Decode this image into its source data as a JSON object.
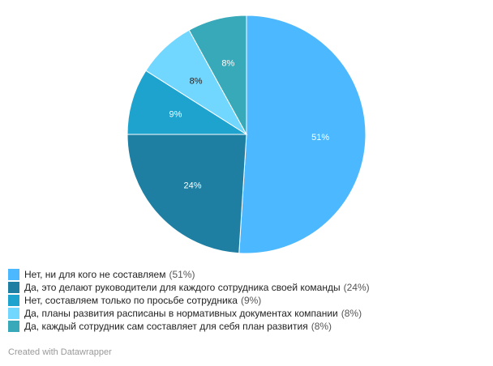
{
  "chart_data": {
    "type": "pie",
    "slices": [
      {
        "label": "Нет, ни для кого не составляем",
        "value": 51,
        "display": "51%",
        "legend_value": "(51%)",
        "color": "#4cb8ff",
        "text_color": "#ffffff"
      },
      {
        "label": "Да, это делают руководители для каждого сотрудника своей команды",
        "value": 24,
        "display": "24%",
        "legend_value": "(24%)",
        "color": "#1e7fa3",
        "text_color": "#ffffff"
      },
      {
        "label": "Нет, составляем только по просьбе сотрудника",
        "value": 9,
        "display": "9%",
        "legend_value": "(9%)",
        "color": "#1ea3cf",
        "text_color": "#ffffff"
      },
      {
        "label": "Да, планы развития расписаны в нормативных документах компании",
        "value": 8,
        "display": "8%",
        "legend_value": "(8%)",
        "color": "#71d7ff",
        "text_color": "#222222"
      },
      {
        "label": "Да, каждый сотрудник сам составляет для себя план развития",
        "value": 8,
        "display": "8%",
        "legend_value": "(8%)",
        "color": "#37a9b8",
        "text_color": "#ffffff"
      }
    ],
    "legend_placement": "bottom-left"
  },
  "credit": "Created with Datawrapper"
}
